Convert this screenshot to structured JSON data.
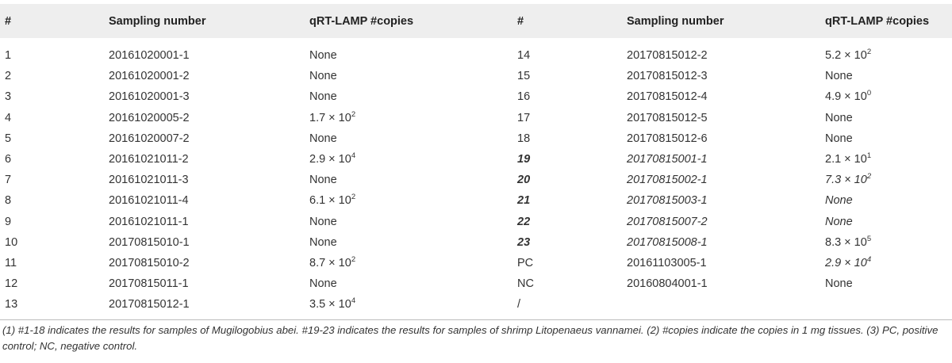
{
  "headers": [
    "#",
    "Sampling number",
    "qRT-LAMP #copies",
    "#",
    "Sampling number",
    "qRT-LAMP #copies"
  ],
  "rows": [
    {
      "a_num": "1",
      "a_sample": "20161020001-1",
      "a_copies": "None",
      "b_num": "14",
      "b_sample": "20170815012-2",
      "b_copies": "5.2 × 10",
      "b_exp": "2",
      "b_style": ""
    },
    {
      "a_num": "2",
      "a_sample": "20161020001-2",
      "a_copies": "None",
      "b_num": "15",
      "b_sample": "20170815012-3",
      "b_copies": "None",
      "b_style": ""
    },
    {
      "a_num": "3",
      "a_sample": "20161020001-3",
      "a_copies": "None",
      "b_num": "16",
      "b_sample": "20170815012-4",
      "b_copies": "4.9 × 10",
      "b_exp": "0",
      "b_style": ""
    },
    {
      "a_num": "4",
      "a_sample": "20161020005-2",
      "a_copies": "1.7 × 10",
      "a_exp": "2",
      "b_num": "17",
      "b_sample": "20170815012-5",
      "b_copies": "None",
      "b_style": ""
    },
    {
      "a_num": "5",
      "a_sample": "20161020007-2",
      "a_copies": "None",
      "b_num": "18",
      "b_sample": "20170815012-6",
      "b_copies": "None",
      "b_style": ""
    },
    {
      "a_num": "6",
      "a_sample": "20161021011-2",
      "a_copies": "2.9 × 10",
      "a_exp": "4",
      "b_num": "19",
      "b_sample": "20170815001-1",
      "b_copies": "2.1 × 10",
      "b_exp": "1",
      "b_style": "shrimp",
      "b_copies_italic": false
    },
    {
      "a_num": "7",
      "a_sample": "20161021011-3",
      "a_copies": "None",
      "b_num": "20",
      "b_sample": "20170815002-1",
      "b_copies": "7.3 × 10",
      "b_exp": "2",
      "b_style": "shrimp",
      "b_copies_italic": true
    },
    {
      "a_num": "8",
      "a_sample": "20161021011-4",
      "a_copies": "6.1 × 10",
      "a_exp": "2",
      "b_num": "21",
      "b_sample": "20170815003-1",
      "b_copies": "None",
      "b_style": "shrimp",
      "b_copies_italic": true
    },
    {
      "a_num": "9",
      "a_sample": "20161021011-1",
      "a_copies": "None",
      "b_num": "22",
      "b_sample": "20170815007-2",
      "b_copies": "None",
      "b_style": "shrimp",
      "b_copies_italic": true
    },
    {
      "a_num": "10",
      "a_sample": "20170815010-1",
      "a_copies": "None",
      "b_num": "23",
      "b_sample": "20170815008-1",
      "b_copies": "8.3 × 10",
      "b_exp": "5",
      "b_style": "shrimp",
      "b_copies_italic": false
    },
    {
      "a_num": "11",
      "a_sample": "20170815010-2",
      "a_copies": "8.7 × 10",
      "a_exp": "2",
      "b_num": "PC",
      "b_sample": "20161103005-1",
      "b_copies": "2.9 × 10",
      "b_exp": "4",
      "b_style": "",
      "b_copies_italic": true
    },
    {
      "a_num": "12",
      "a_sample": "20170815011-1",
      "a_copies": "None",
      "b_num": "NC",
      "b_sample": "20160804001-1",
      "b_copies": "None",
      "b_style": ""
    },
    {
      "a_num": "13",
      "a_sample": "20170815012-1",
      "a_copies": "3.5 × 10",
      "a_exp": "4",
      "b_num": "/",
      "b_sample": "",
      "b_copies": "",
      "b_style": ""
    }
  ],
  "footnote": "(1) #1-18 indicates the results for samples of Mugilogobius abei. #19-23 indicates the results for samples of shrimp Litopenaeus vannamei. (2) #copies indicate the copies in 1 mg tissues. (3) PC, positive control; NC, negative control."
}
